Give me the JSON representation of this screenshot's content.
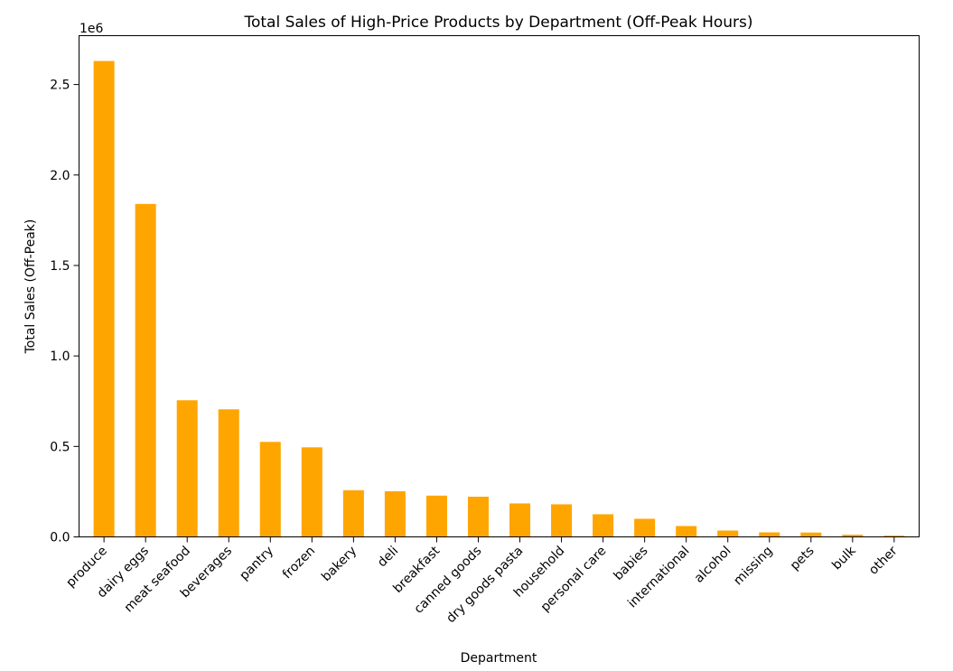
{
  "colors": {
    "bar": "#ffa500",
    "axis": "#000000",
    "background": "#ffffff"
  },
  "chart_data": {
    "type": "bar",
    "title": "Total Sales of High-Price Products by Department (Off-Peak Hours)",
    "xlabel": "Department",
    "ylabel": "Total Sales (Off-Peak)",
    "y_offset_label": "1e6",
    "y_scale": 1000000,
    "ylim": [
      0,
      2770000
    ],
    "yticks": [
      0,
      500000,
      1000000,
      1500000,
      2000000,
      2500000
    ],
    "ytick_labels": [
      "0.0",
      "0.5",
      "1.0",
      "1.5",
      "2.0",
      "2.5"
    ],
    "grid": false,
    "categories": [
      "produce",
      "dairy eggs",
      "meat seafood",
      "beverages",
      "pantry",
      "frozen",
      "bakery",
      "deli",
      "breakfast",
      "canned goods",
      "dry goods pasta",
      "household",
      "personal care",
      "babies",
      "international",
      "alcohol",
      "missing",
      "pets",
      "bulk",
      "other"
    ],
    "values": [
      2630000,
      1840000,
      755000,
      705000,
      525000,
      495000,
      258000,
      252000,
      228000,
      222000,
      185000,
      180000,
      125000,
      100000,
      60000,
      35000,
      25000,
      24000,
      12000,
      7000
    ]
  }
}
